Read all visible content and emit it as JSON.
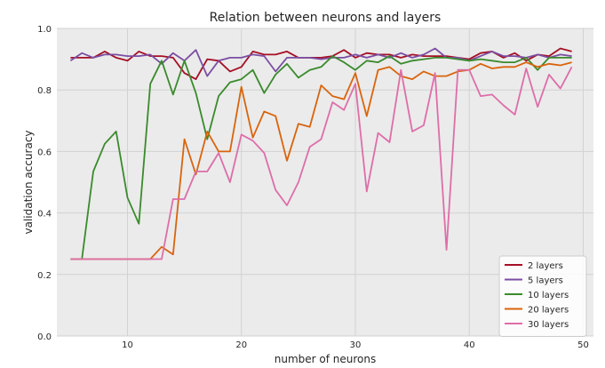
{
  "chart_data": {
    "type": "line",
    "title": "Relation between neurons and layers",
    "xlabel": "number of neurons",
    "ylabel": "validation accuracy",
    "xlim": [
      3.8,
      50.9
    ],
    "ylim": [
      0.0,
      1.0
    ],
    "xticks": [
      10,
      20,
      30,
      40,
      50
    ],
    "yticks": [
      0.0,
      0.2,
      0.4,
      0.6,
      0.8,
      1.0
    ],
    "grid": true,
    "legend_position": "lower right",
    "x": [
      5,
      6,
      7,
      8,
      9,
      10,
      11,
      12,
      13,
      14,
      15,
      16,
      17,
      18,
      19,
      20,
      21,
      22,
      23,
      24,
      25,
      26,
      27,
      28,
      29,
      30,
      31,
      32,
      33,
      34,
      35,
      36,
      37,
      38,
      39,
      40,
      41,
      42,
      43,
      44,
      45,
      46,
      47,
      48,
      49
    ],
    "series": [
      {
        "name": "2 layers",
        "color": "#a50f25",
        "values": [
          0.905,
          0.905,
          0.905,
          0.925,
          0.905,
          0.895,
          0.925,
          0.91,
          0.91,
          0.905,
          0.855,
          0.835,
          0.9,
          0.895,
          0.86,
          0.875,
          0.925,
          0.915,
          0.915,
          0.925,
          0.905,
          0.905,
          0.905,
          0.91,
          0.93,
          0.905,
          0.92,
          0.915,
          0.915,
          0.905,
          0.915,
          0.91,
          0.91,
          0.91,
          0.905,
          0.9,
          0.92,
          0.925,
          0.905,
          0.92,
          0.895,
          0.915,
          0.91,
          0.935,
          0.925
        ]
      },
      {
        "name": "5 layers",
        "color": "#7b4ea3",
        "values": [
          0.895,
          0.92,
          0.905,
          0.915,
          0.915,
          0.91,
          0.91,
          0.915,
          0.885,
          0.92,
          0.895,
          0.93,
          0.845,
          0.895,
          0.905,
          0.905,
          0.915,
          0.91,
          0.86,
          0.905,
          0.905,
          0.905,
          0.9,
          0.905,
          0.905,
          0.915,
          0.905,
          0.915,
          0.905,
          0.92,
          0.905,
          0.915,
          0.935,
          0.905,
          0.905,
          0.895,
          0.91,
          0.925,
          0.91,
          0.91,
          0.905,
          0.915,
          0.905,
          0.915,
          0.91
        ]
      },
      {
        "name": "10 layers",
        "color": "#3a8a2c",
        "values": [
          0.25,
          0.25,
          0.535,
          0.625,
          0.665,
          0.45,
          0.365,
          0.82,
          0.895,
          0.785,
          0.895,
          0.79,
          0.64,
          0.78,
          0.825,
          0.835,
          0.865,
          0.79,
          0.85,
          0.885,
          0.84,
          0.865,
          0.875,
          0.91,
          0.89,
          0.865,
          0.895,
          0.89,
          0.91,
          0.885,
          0.895,
          0.9,
          0.905,
          0.905,
          0.9,
          0.895,
          0.9,
          0.895,
          0.89,
          0.89,
          0.905,
          0.865,
          0.905,
          0.905,
          0.905
        ]
      },
      {
        "name": "20 layers",
        "color": "#d9640c",
        "values": [
          0.25,
          0.25,
          0.25,
          0.25,
          0.25,
          0.25,
          0.25,
          0.25,
          0.29,
          0.265,
          0.64,
          0.525,
          0.665,
          0.6,
          0.6,
          0.81,
          0.645,
          0.73,
          0.715,
          0.57,
          0.69,
          0.68,
          0.815,
          0.78,
          0.77,
          0.855,
          0.715,
          0.865,
          0.875,
          0.845,
          0.835,
          0.86,
          0.845,
          0.845,
          0.86,
          0.865,
          0.885,
          0.87,
          0.875,
          0.875,
          0.89,
          0.875,
          0.885,
          0.88,
          0.89
        ]
      },
      {
        "name": "30 layers",
        "color": "#dd6ea8",
        "values": [
          0.25,
          0.25,
          0.25,
          0.25,
          0.25,
          0.25,
          0.25,
          0.25,
          0.25,
          0.445,
          0.445,
          0.535,
          0.535,
          0.595,
          0.5,
          0.655,
          0.635,
          0.595,
          0.475,
          0.425,
          0.5,
          0.615,
          0.64,
          0.76,
          0.735,
          0.82,
          0.47,
          0.66,
          0.63,
          0.865,
          0.665,
          0.685,
          0.855,
          0.28,
          0.865,
          0.865,
          0.78,
          0.785,
          0.75,
          0.72,
          0.87,
          0.745,
          0.85,
          0.805,
          0.875
        ]
      }
    ]
  }
}
